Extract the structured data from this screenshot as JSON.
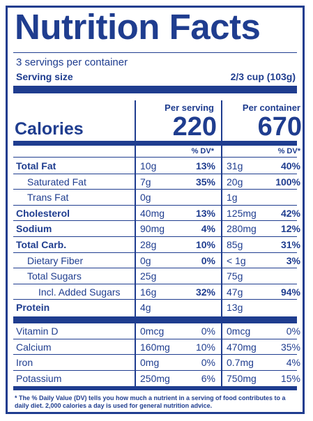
{
  "title": "Nutrition Facts",
  "servings": "3 servings per container",
  "serving_size_label": "Serving size",
  "serving_size_value": "2/3 cup (103g)",
  "calories_label": "Calories",
  "col1_head": "Per serving",
  "col2_head": "Per container",
  "calories_serving": "220",
  "calories_container": "670",
  "dv_head": "% DV*",
  "rows": [
    {
      "name": "Total Fat",
      "s": "10g",
      "sp": "13%",
      "c": "31g",
      "cp": "40%"
    },
    {
      "name": "Saturated Fat",
      "s": "7g",
      "sp": "35%",
      "c": "20g",
      "cp": "100%"
    },
    {
      "name": "Trans Fat",
      "s": "0g",
      "sp": "",
      "c": "1g",
      "cp": ""
    },
    {
      "name": "Cholesterol",
      "s": "40mg",
      "sp": "13%",
      "c": "125mg",
      "cp": "42%"
    },
    {
      "name": "Sodium",
      "s": "90mg",
      "sp": "4%",
      "c": "280mg",
      "cp": "12%"
    },
    {
      "name": "Total Carb.",
      "s": "28g",
      "sp": "10%",
      "c": "85g",
      "cp": "31%"
    },
    {
      "name": "Dietary Fiber",
      "s": "0g",
      "sp": "0%",
      "c": "< 1g",
      "cp": "3%"
    },
    {
      "name": "Total Sugars",
      "s": "25g",
      "sp": "",
      "c": "75g",
      "cp": ""
    },
    {
      "name": "Incl. Added Sugars",
      "s": "16g",
      "sp": "32%",
      "c": "47g",
      "cp": "94%"
    },
    {
      "name": "Protein",
      "s": "4g",
      "sp": "",
      "c": "13g",
      "cp": ""
    }
  ],
  "vitamins": [
    {
      "name": "Vitamin D",
      "s": "0mcg",
      "sp": "0%",
      "c": "0mcg",
      "cp": "0%"
    },
    {
      "name": "Calcium",
      "s": "160mg",
      "sp": "10%",
      "c": "470mg",
      "cp": "35%"
    },
    {
      "name": "Iron",
      "s": "0mg",
      "sp": "0%",
      "c": "0.7mg",
      "cp": "4%"
    },
    {
      "name": "Potassium",
      "s": "250mg",
      "sp": "6%",
      "c": "750mg",
      "cp": "15%"
    }
  ],
  "footnote": "* The % Daily Value (DV) tells you how much a nutrient in a serving of food contributes to a daily diet. 2,000 calories a day is used for general nutrition advice.",
  "colors": {
    "ink": "#1f3d8f"
  }
}
